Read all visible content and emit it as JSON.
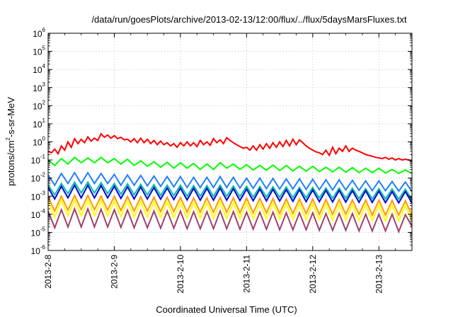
{
  "chart_data": {
    "type": "line",
    "title": "/data/run/goesPlots/archive/2013-02-13/12:00/flux/../flux/5daysMarsFluxes.txt",
    "xlabel": "Coordinated Universal Time (UTC)",
    "ylabel": "protons/cm2-s-sr-MeV",
    "y_scale": "log",
    "ylim": [
      1e-06,
      1000000.0
    ],
    "xlim": [
      0,
      5.5
    ],
    "x_ticks": [
      "2013-2-8",
      "2013-2-9",
      "2013-2-10",
      "2013-2-11",
      "2013-2-12",
      "2013-2-13"
    ],
    "y_ticks": [
      {
        "base": "10",
        "exp": "-6"
      },
      {
        "base": "10",
        "exp": "-5"
      },
      {
        "base": "10",
        "exp": "-4"
      },
      {
        "base": "10",
        "exp": "-3"
      },
      {
        "base": "10",
        "exp": "-2"
      },
      {
        "base": "10",
        "exp": "-1"
      },
      {
        "base": "10",
        "exp": "0"
      },
      {
        "base": "10",
        "exp": "1"
      },
      {
        "base": "10",
        "exp": "2"
      },
      {
        "base": "10",
        "exp": "3"
      },
      {
        "base": "10",
        "exp": "4"
      },
      {
        "base": "10",
        "exp": "5"
      },
      {
        "base": "10",
        "exp": "6"
      }
    ],
    "grid": true,
    "series": [
      {
        "color": "#ff0000",
        "x": [
          0,
          0.05,
          0.1,
          0.15,
          0.2,
          0.25,
          0.3,
          0.35,
          0.4,
          0.45,
          0.5,
          0.55,
          0.6,
          0.65,
          0.7,
          0.75,
          0.8,
          0.85,
          0.9,
          0.95,
          1,
          1.05,
          1.1,
          1.15,
          1.2,
          1.25,
          1.3,
          1.35,
          1.4,
          1.45,
          1.5,
          1.55,
          1.6,
          1.65,
          1.7,
          1.75,
          1.8,
          1.85,
          1.9,
          1.95,
          2,
          2.05,
          2.1,
          2.15,
          2.2,
          2.25,
          2.3,
          2.35,
          2.4,
          2.45,
          2.5,
          2.55,
          2.6,
          2.65,
          2.7,
          2.75,
          2.8,
          2.85,
          2.9,
          2.95,
          3,
          3.05,
          3.1,
          3.15,
          3.2,
          3.25,
          3.3,
          3.35,
          3.4,
          3.45,
          3.5,
          3.55,
          3.6,
          3.65,
          3.7,
          3.75,
          3.8,
          3.85,
          3.9,
          3.95,
          4,
          4.05,
          4.1,
          4.15,
          4.2,
          4.25,
          4.3,
          4.35,
          4.4,
          4.45,
          4.5,
          4.55,
          4.6,
          4.65,
          4.7,
          4.75,
          4.8,
          4.85,
          4.9,
          4.95,
          5,
          5.05,
          5.1,
          5.15,
          5.2,
          5.25,
          5.3,
          5.35,
          5.4,
          5.45,
          5.5
        ],
        "y": [
          0.3,
          0.25,
          0.4,
          0.22,
          0.6,
          0.35,
          1.0,
          0.5,
          1.5,
          0.8,
          1.4,
          0.9,
          1.9,
          1.1,
          1.6,
          1.2,
          2.8,
          1.8,
          2.4,
          1.6,
          2.2,
          1.5,
          1.8,
          1.3,
          1.4,
          1.0,
          1.5,
          0.9,
          1.6,
          0.9,
          1.4,
          0.8,
          1.2,
          0.7,
          1.1,
          0.7,
          0.9,
          0.6,
          0.8,
          0.5,
          0.9,
          0.6,
          1.0,
          0.6,
          0.9,
          0.55,
          1.2,
          0.7,
          1.0,
          0.65,
          1.5,
          0.9,
          1.3,
          0.8,
          1.7,
          1.2,
          0.9,
          0.7,
          0.55,
          0.45,
          0.5,
          0.35,
          0.6,
          0.35,
          0.7,
          0.4,
          0.8,
          0.45,
          0.9,
          0.5,
          1.0,
          0.55,
          1.2,
          0.6,
          1.4,
          0.7,
          1.3,
          0.9,
          0.6,
          0.45,
          0.35,
          0.28,
          0.25,
          0.2,
          0.35,
          0.18,
          0.5,
          0.22,
          0.45,
          0.3,
          0.6,
          0.3,
          0.45,
          0.35,
          0.3,
          0.25,
          0.2,
          0.18,
          0.16,
          0.14,
          0.13,
          0.12,
          0.14,
          0.11,
          0.13,
          0.1,
          0.12,
          0.1,
          0.11,
          0.1,
          0.09
        ]
      },
      {
        "color": "#00ff00",
        "x": [
          0,
          0.1,
          0.2,
          0.3,
          0.4,
          0.5,
          0.6,
          0.7,
          0.8,
          0.9,
          1,
          1.1,
          1.2,
          1.3,
          1.4,
          1.5,
          1.6,
          1.7,
          1.8,
          1.9,
          2,
          2.1,
          2.2,
          2.3,
          2.4,
          2.5,
          2.6,
          2.7,
          2.8,
          2.9,
          3,
          3.1,
          3.2,
          3.3,
          3.4,
          3.5,
          3.6,
          3.7,
          3.8,
          3.9,
          4,
          4.1,
          4.2,
          4.3,
          4.4,
          4.5,
          4.6,
          4.7,
          4.8,
          4.9,
          5,
          5.1,
          5.2,
          5.3,
          5.4,
          5.5
        ],
        "y": [
          0.1,
          0.05,
          0.12,
          0.06,
          0.14,
          0.07,
          0.13,
          0.07,
          0.14,
          0.07,
          0.12,
          0.06,
          0.11,
          0.05,
          0.09,
          0.045,
          0.08,
          0.04,
          0.075,
          0.035,
          0.07,
          0.035,
          0.065,
          0.03,
          0.06,
          0.03,
          0.07,
          0.035,
          0.06,
          0.03,
          0.055,
          0.028,
          0.05,
          0.027,
          0.052,
          0.026,
          0.05,
          0.025,
          0.045,
          0.024,
          0.045,
          0.023,
          0.04,
          0.022,
          0.04,
          0.021,
          0.038,
          0.02,
          0.035,
          0.02,
          0.035,
          0.019,
          0.03,
          0.018,
          0.028,
          0.018
        ]
      },
      {
        "color": "#1f7fff",
        "x": [
          0,
          0.1,
          0.2,
          0.3,
          0.4,
          0.5,
          0.6,
          0.7,
          0.8,
          0.9,
          1,
          1.1,
          1.2,
          1.3,
          1.4,
          1.5,
          1.6,
          1.7,
          1.8,
          1.9,
          2,
          2.1,
          2.2,
          2.3,
          2.4,
          2.5,
          2.6,
          2.7,
          2.8,
          2.9,
          3,
          3.1,
          3.2,
          3.3,
          3.4,
          3.5,
          3.6,
          3.7,
          3.8,
          3.9,
          4,
          4.1,
          4.2,
          4.3,
          4.4,
          4.5,
          4.6,
          4.7,
          4.8,
          4.9,
          5,
          5.1,
          5.2,
          5.3,
          5.4,
          5.5
        ],
        "y": [
          0.015,
          0.004,
          0.018,
          0.005,
          0.02,
          0.005,
          0.02,
          0.005,
          0.018,
          0.005,
          0.016,
          0.004,
          0.015,
          0.004,
          0.014,
          0.0037,
          0.013,
          0.0035,
          0.012,
          0.0033,
          0.012,
          0.003,
          0.011,
          0.003,
          0.011,
          0.003,
          0.012,
          0.003,
          0.011,
          0.0028,
          0.01,
          0.0027,
          0.01,
          0.0026,
          0.0095,
          0.0025,
          0.009,
          0.0025,
          0.009,
          0.0024,
          0.0085,
          0.0023,
          0.008,
          0.0022,
          0.008,
          0.0022,
          0.0075,
          0.0021,
          0.007,
          0.002,
          0.007,
          0.002,
          0.0065,
          0.0019,
          0.006,
          0.0018
        ]
      },
      {
        "color": "#00c0a0",
        "x": [
          0,
          0.1,
          0.2,
          0.3,
          0.4,
          0.5,
          0.6,
          0.7,
          0.8,
          0.9,
          1,
          1.1,
          1.2,
          1.3,
          1.4,
          1.5,
          1.6,
          1.7,
          1.8,
          1.9,
          2,
          2.1,
          2.2,
          2.3,
          2.4,
          2.5,
          2.6,
          2.7,
          2.8,
          2.9,
          3,
          3.1,
          3.2,
          3.3,
          3.4,
          3.5,
          3.6,
          3.7,
          3.8,
          3.9,
          4,
          4.1,
          4.2,
          4.3,
          4.4,
          4.5,
          4.6,
          4.7,
          4.8,
          4.9,
          5,
          5.1,
          5.2,
          5.3,
          5.4,
          5.5
        ],
        "y": [
          0.004,
          0.0012,
          0.005,
          0.0014,
          0.006,
          0.0015,
          0.006,
          0.0015,
          0.0055,
          0.0014,
          0.005,
          0.0013,
          0.0048,
          0.0012,
          0.0045,
          0.0012,
          0.0043,
          0.0011,
          0.004,
          0.0011,
          0.004,
          0.001,
          0.0038,
          0.001,
          0.0038,
          0.001,
          0.004,
          0.001,
          0.0036,
          0.00095,
          0.0035,
          0.0009,
          0.0034,
          0.0009,
          0.0033,
          0.00088,
          0.0032,
          0.00085,
          0.003,
          0.00082,
          0.003,
          0.0008,
          0.0028,
          0.00078,
          0.0028,
          0.00075,
          0.0027,
          0.00073,
          0.0026,
          0.0007,
          0.0026,
          0.0007,
          0.0025,
          0.00068,
          0.0024,
          0.00065
        ]
      },
      {
        "color": "#0000dd",
        "x": [
          0,
          0.1,
          0.2,
          0.3,
          0.4,
          0.5,
          0.6,
          0.7,
          0.8,
          0.9,
          1,
          1.1,
          1.2,
          1.3,
          1.4,
          1.5,
          1.6,
          1.7,
          1.8,
          1.9,
          2,
          2.1,
          2.2,
          2.3,
          2.4,
          2.5,
          2.6,
          2.7,
          2.8,
          2.9,
          3,
          3.1,
          3.2,
          3.3,
          3.4,
          3.5,
          3.6,
          3.7,
          3.8,
          3.9,
          4,
          4.1,
          4.2,
          4.3,
          4.4,
          4.5,
          4.6,
          4.7,
          4.8,
          4.9,
          5,
          5.1,
          5.2,
          5.3,
          5.4,
          5.5
        ],
        "y": [
          0.003,
          0.0007,
          0.0035,
          0.0008,
          0.004,
          0.0008,
          0.004,
          0.0008,
          0.0038,
          0.0008,
          0.0035,
          0.00075,
          0.0033,
          0.0007,
          0.0032,
          0.0007,
          0.003,
          0.00068,
          0.0028,
          0.00065,
          0.0028,
          0.00062,
          0.0027,
          0.0006,
          0.0027,
          0.0006,
          0.0028,
          0.0006,
          0.0026,
          0.00058,
          0.0025,
          0.00056,
          0.0025,
          0.00055,
          0.0024,
          0.00054,
          0.0023,
          0.00052,
          0.0023,
          0.0005,
          0.0022,
          0.0005,
          0.0021,
          0.00048,
          0.0021,
          0.00047,
          0.002,
          0.00046,
          0.002,
          0.00045,
          0.0019,
          0.00044,
          0.0018,
          0.00043,
          0.0018,
          0.00042
        ]
      },
      {
        "color": "#ff9900",
        "x": [
          0,
          0.1,
          0.2,
          0.3,
          0.4,
          0.5,
          0.6,
          0.7,
          0.8,
          0.9,
          1,
          1.1,
          1.2,
          1.3,
          1.4,
          1.5,
          1.6,
          1.7,
          1.8,
          1.9,
          2,
          2.1,
          2.2,
          2.3,
          2.4,
          2.5,
          2.6,
          2.7,
          2.8,
          2.9,
          3,
          3.1,
          3.2,
          3.3,
          3.4,
          3.5,
          3.6,
          3.7,
          3.8,
          3.9,
          4,
          4.1,
          4.2,
          4.3,
          4.4,
          4.5,
          4.6,
          4.7,
          4.8,
          4.9,
          5,
          5.1,
          5.2,
          5.3,
          5.4,
          5.5
        ],
        "y": [
          0.0009,
          0.00015,
          0.001,
          0.00017,
          0.0011,
          0.00018,
          0.0011,
          0.00018,
          0.001,
          0.00017,
          0.001,
          0.00016,
          0.00095,
          0.00015,
          0.0009,
          0.00015,
          0.00088,
          0.00014,
          0.00085,
          0.00014,
          0.00085,
          0.00013,
          0.0008,
          0.00013,
          0.0008,
          0.00013,
          0.00085,
          0.00013,
          0.0008,
          0.00012,
          0.00078,
          0.00012,
          0.00075,
          0.00012,
          0.00073,
          0.00011,
          0.0007,
          0.00011,
          0.0007,
          0.00011,
          0.00068,
          0.0001,
          0.00065,
          0.0001,
          0.00065,
          0.0001,
          0.00062,
          0.0001,
          0.0006,
          9e-05,
          0.0006,
          9e-05,
          0.00058,
          9e-05,
          0.00055,
          9e-05
        ]
      },
      {
        "color": "#ffff00",
        "x": [
          0,
          0.1,
          0.2,
          0.3,
          0.4,
          0.5,
          0.6,
          0.7,
          0.8,
          0.9,
          1,
          1.1,
          1.2,
          1.3,
          1.4,
          1.5,
          1.6,
          1.7,
          1.8,
          1.9,
          2,
          2.1,
          2.2,
          2.3,
          2.4,
          2.5,
          2.6,
          2.7,
          2.8,
          2.9,
          3,
          3.1,
          3.2,
          3.3,
          3.4,
          3.5,
          3.6,
          3.7,
          3.8,
          3.9,
          4,
          4.1,
          4.2,
          4.3,
          4.4,
          4.5,
          4.6,
          4.7,
          4.8,
          4.9,
          5,
          5.1,
          5.2,
          5.3,
          5.4,
          5.5
        ],
        "y": [
          0.0005,
          7e-05,
          0.0006,
          8e-05,
          0.0006,
          8e-05,
          0.0006,
          8e-05,
          0.00058,
          8e-05,
          0.00055,
          7.5e-05,
          0.00053,
          7e-05,
          0.0005,
          7e-05,
          0.00048,
          6.8e-05,
          0.00046,
          6.5e-05,
          0.00046,
          6.2e-05,
          0.00044,
          6e-05,
          0.00044,
          6e-05,
          0.00046,
          6e-05,
          0.00043,
          5.8e-05,
          0.00042,
          5.6e-05,
          0.00041,
          5.5e-05,
          0.0004,
          5.4e-05,
          0.00038,
          5.2e-05,
          0.00038,
          5e-05,
          0.00037,
          5e-05,
          0.00036,
          4.8e-05,
          0.00036,
          4.7e-05,
          0.00034,
          4.6e-05,
          0.00033,
          4.5e-05,
          0.00033,
          4.4e-05,
          0.00032,
          4.3e-05,
          0.00031,
          4.2e-05
        ]
      },
      {
        "color": "#a0406e",
        "x": [
          0,
          0.1,
          0.2,
          0.3,
          0.4,
          0.5,
          0.6,
          0.7,
          0.8,
          0.9,
          1,
          1.1,
          1.2,
          1.3,
          1.4,
          1.5,
          1.6,
          1.7,
          1.8,
          1.9,
          2,
          2.1,
          2.2,
          2.3,
          2.4,
          2.5,
          2.6,
          2.7,
          2.8,
          2.9,
          3,
          3.1,
          3.2,
          3.3,
          3.4,
          3.5,
          3.6,
          3.7,
          3.8,
          3.9,
          4,
          4.1,
          4.2,
          4.3,
          4.4,
          4.5,
          4.6,
          4.7,
          4.8,
          4.9,
          5,
          5.1,
          5.2,
          5.3,
          5.4,
          5.5
        ],
        "y": [
          0.00015,
          1.8e-05,
          0.00018,
          2e-05,
          0.0002,
          2e-05,
          0.0002,
          2e-05,
          0.00019,
          2e-05,
          0.00018,
          1.9e-05,
          0.00017,
          1.8e-05,
          0.00016,
          1.8e-05,
          0.00015,
          1.7e-05,
          0.00015,
          1.7e-05,
          0.00015,
          1.6e-05,
          0.00014,
          1.6e-05,
          0.00014,
          1.6e-05,
          0.00015,
          1.6e-05,
          0.00014,
          1.5e-05,
          0.00013,
          1.5e-05,
          0.00013,
          1.5e-05,
          0.00013,
          1.4e-05,
          0.00012,
          1.4e-05,
          0.00012,
          1.4e-05,
          0.00012,
          1.3e-05,
          0.00011,
          1.3e-05,
          0.00011,
          1.3e-05,
          0.00011,
          1.2e-05,
          0.0001,
          1.2e-05,
          0.0001,
          1.2e-05,
          0.0001,
          1.1e-05,
          9.5e-05,
          2.2e-05
        ]
      }
    ]
  }
}
